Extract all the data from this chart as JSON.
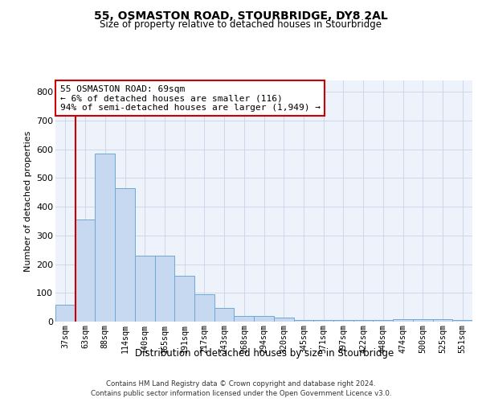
{
  "title1": "55, OSMASTON ROAD, STOURBRIDGE, DY8 2AL",
  "title2": "Size of property relative to detached houses in Stourbridge",
  "xlabel": "Distribution of detached houses by size in Stourbridge",
  "ylabel": "Number of detached properties",
  "bar_labels": [
    "37sqm",
    "63sqm",
    "88sqm",
    "114sqm",
    "140sqm",
    "165sqm",
    "191sqm",
    "217sqm",
    "243sqm",
    "268sqm",
    "294sqm",
    "320sqm",
    "345sqm",
    "371sqm",
    "397sqm",
    "422sqm",
    "448sqm",
    "474sqm",
    "500sqm",
    "525sqm",
    "551sqm"
  ],
  "bar_heights": [
    60,
    355,
    585,
    465,
    230,
    230,
    160,
    95,
    48,
    20,
    20,
    13,
    5,
    5,
    5,
    5,
    5,
    8,
    8,
    8,
    5
  ],
  "annotation_line1": "55 OSMASTON ROAD: 69sqm",
  "annotation_line2": "← 6% of detached houses are smaller (116)",
  "annotation_line3": "94% of semi-detached houses are larger (1,949) →",
  "bar_color": "#c6d9f0",
  "bar_edge_color": "#6fa8d5",
  "property_line_color": "#cc0000",
  "annotation_border_color": "#cc0000",
  "grid_color": "#c8d4e8",
  "bg_color": "#edf2fb",
  "ylim_max": 840,
  "footer1": "Contains HM Land Registry data © Crown copyright and database right 2024.",
  "footer2": "Contains public sector information licensed under the Open Government Licence v3.0."
}
